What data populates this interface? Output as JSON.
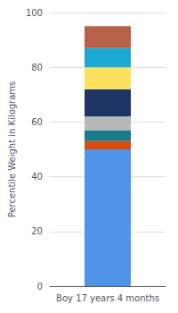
{
  "chart_data": {
    "type": "bar",
    "stacked": true,
    "categories": [
      "Boy 17 years 4 months"
    ],
    "series": [
      {
        "color": "#4F94E8",
        "values": [
          50
        ]
      },
      {
        "color": "#D94E10",
        "values": [
          3
        ]
      },
      {
        "color": "#1A7A8A",
        "values": [
          4
        ]
      },
      {
        "color": "#B8B8B8",
        "values": [
          5
        ]
      },
      {
        "color": "#1F3563",
        "values": [
          10
        ]
      },
      {
        "color": "#FFDF60",
        "values": [
          8
        ]
      },
      {
        "color": "#1AAAD4",
        "values": [
          7
        ]
      },
      {
        "color": "#B8604A",
        "values": [
          8
        ]
      }
    ],
    "ylabel": "Percentile Weight in Kilograms",
    "ylim": [
      0,
      100
    ],
    "yticks": [
      0,
      20,
      40,
      60,
      80,
      100
    ],
    "grid": true
  }
}
